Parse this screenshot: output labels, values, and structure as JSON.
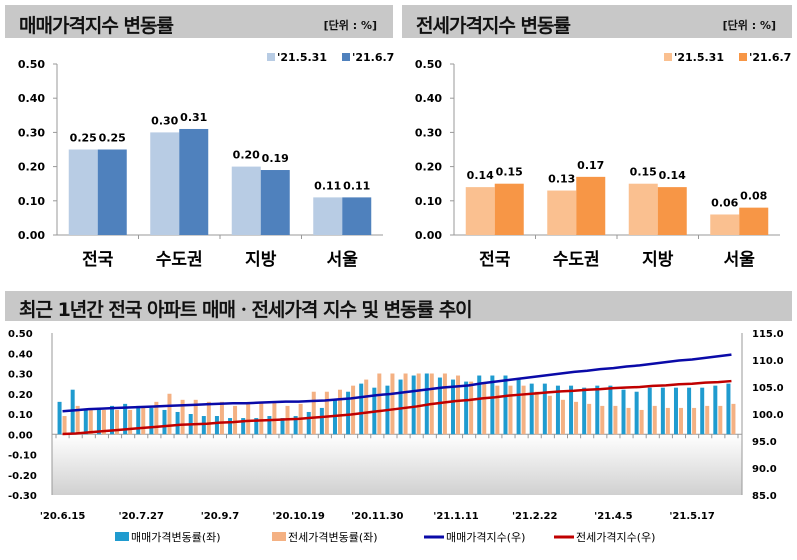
{
  "chart_data": [
    {
      "type": "bar",
      "title": "매매가격지수 변동률",
      "unit": "[단위 : %]",
      "categories": [
        "전국",
        "수도권",
        "지방",
        "서울"
      ],
      "series": [
        {
          "name": "'21.5.31",
          "values": [
            0.25,
            0.3,
            0.2,
            0.11
          ],
          "color": "#b8cce4"
        },
        {
          "name": "'21.6.7",
          "values": [
            0.25,
            0.31,
            0.19,
            0.11
          ],
          "color": "#4f81bd"
        }
      ],
      "ylim": [
        0,
        0.5
      ],
      "yticks": [
        "0.00",
        "0.10",
        "0.20",
        "0.30",
        "0.40",
        "0.50"
      ],
      "legend": "top-right",
      "grid": false
    },
    {
      "type": "bar",
      "title": "전세가격지수 변동률",
      "unit": "[단위 : %]",
      "categories": [
        "전국",
        "수도권",
        "지방",
        "서울"
      ],
      "series": [
        {
          "name": "'21.5.31",
          "values": [
            0.14,
            0.13,
            0.15,
            0.06
          ],
          "color": "#fac090"
        },
        {
          "name": "'21.6.7",
          "values": [
            0.15,
            0.17,
            0.14,
            0.08
          ],
          "color": "#f79646"
        }
      ],
      "ylim": [
        0,
        0.5
      ],
      "yticks": [
        "0.00",
        "0.10",
        "0.20",
        "0.30",
        "0.40",
        "0.50"
      ],
      "legend": "top-right",
      "grid": false
    },
    {
      "type": "bar+line",
      "title": "최근 1년간 전국 아파트 매매ㆍ전세가격 지수 및 변동률 추이",
      "xticks": [
        "'20.6.15",
        "'20.7.27",
        "'20.9.7",
        "'20.10.19",
        "'20.11.30",
        "'21.1.11",
        "'21.2.22",
        "'21.4.5",
        "'21.5.17"
      ],
      "ylim_left": [
        -0.3,
        0.5
      ],
      "yticks_left": [
        "0.50",
        "0.40",
        "0.30",
        "0.20",
        "0.10",
        "0.00",
        "-0.10",
        "-0.20",
        "-0.30"
      ],
      "ylim_right": [
        85,
        115
      ],
      "yticks_right": [
        "115.0",
        "110.0",
        "105.0",
        "100.0",
        "95.0",
        "90.0",
        "85.0"
      ],
      "legend": "bottom",
      "series": [
        {
          "name": "매매가격변동률(좌)",
          "type": "bar",
          "axis": "left",
          "color": "#1f9bcf",
          "values": [
            0.16,
            0.22,
            0.12,
            0.13,
            0.14,
            0.15,
            0.14,
            0.13,
            0.12,
            0.11,
            0.1,
            0.09,
            0.09,
            0.08,
            0.08,
            0.08,
            0.09,
            0.08,
            0.09,
            0.11,
            0.13,
            0.17,
            0.21,
            0.25,
            0.23,
            0.24,
            0.27,
            0.29,
            0.3,
            0.28,
            0.27,
            0.26,
            0.29,
            0.29,
            0.29,
            0.27,
            0.25,
            0.25,
            0.24,
            0.24,
            0.23,
            0.24,
            0.24,
            0.22,
            0.21,
            0.23,
            0.23,
            0.23,
            0.23,
            0.23,
            0.24,
            0.25
          ]
        },
        {
          "name": "전세가격변동률(좌)",
          "type": "bar",
          "axis": "left",
          "color": "#f4b183",
          "values": [
            0.09,
            0.14,
            0.12,
            0.12,
            0.12,
            0.12,
            0.14,
            0.16,
            0.2,
            0.17,
            0.17,
            0.16,
            0.16,
            0.14,
            0.15,
            0.16,
            0.16,
            0.14,
            0.15,
            0.21,
            0.21,
            0.22,
            0.24,
            0.27,
            0.3,
            0.3,
            0.3,
            0.3,
            0.3,
            0.3,
            0.29,
            0.26,
            0.25,
            0.24,
            0.24,
            0.24,
            0.21,
            0.19,
            0.17,
            0.16,
            0.15,
            0.14,
            0.14,
            0.13,
            0.12,
            0.14,
            0.13,
            0.13,
            0.13,
            0.14,
            0.14,
            0.15
          ]
        },
        {
          "name": "매매가격지수(우)",
          "type": "line",
          "axis": "right",
          "color": "#0a0aa8",
          "values": [
            100.5,
            100.7,
            100.9,
            101.0,
            101.1,
            101.2,
            101.3,
            101.4,
            101.5,
            101.6,
            101.7,
            101.8,
            101.9,
            102.0,
            102.0,
            102.1,
            102.2,
            102.3,
            102.3,
            102.4,
            102.5,
            102.7,
            102.9,
            103.2,
            103.5,
            103.7,
            104.0,
            104.3,
            104.6,
            104.9,
            105.1,
            105.3,
            105.7,
            106.0,
            106.3,
            106.6,
            106.9,
            107.2,
            107.5,
            107.8,
            108.0,
            108.3,
            108.5,
            108.8,
            109.0,
            109.3,
            109.6,
            109.9,
            110.1,
            110.4,
            110.7,
            111.0
          ]
        },
        {
          "name": "전세가격지수(우)",
          "type": "line",
          "axis": "right",
          "color": "#c00000",
          "values": [
            96.3,
            96.4,
            96.6,
            96.8,
            97.0,
            97.2,
            97.4,
            97.6,
            97.8,
            98.0,
            98.1,
            98.2,
            98.4,
            98.5,
            98.7,
            98.8,
            98.9,
            99.0,
            99.1,
            99.3,
            99.5,
            99.7,
            99.9,
            100.2,
            100.5,
            100.8,
            101.1,
            101.4,
            101.8,
            102.1,
            102.4,
            102.6,
            102.9,
            103.1,
            103.4,
            103.6,
            103.8,
            104.0,
            104.2,
            104.3,
            104.5,
            104.6,
            104.8,
            104.9,
            105.0,
            105.2,
            105.3,
            105.5,
            105.6,
            105.8,
            105.9,
            106.1
          ]
        }
      ]
    }
  ]
}
